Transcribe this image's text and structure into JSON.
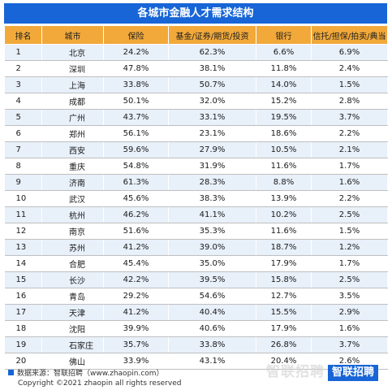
{
  "title": "各城市金融人才需求结构",
  "columns": [
    "排名",
    "城市",
    "保险",
    "基金/证券/期货/投资",
    "银行",
    "信托/担保/拍卖/典当"
  ],
  "rows": [
    [
      "1",
      "北京",
      "24.2%",
      "62.3%",
      "6.6%",
      "6.9%"
    ],
    [
      "2",
      "深圳",
      "47.8%",
      "38.1%",
      "11.8%",
      "2.4%"
    ],
    [
      "3",
      "上海",
      "33.8%",
      "50.7%",
      "14.0%",
      "1.5%"
    ],
    [
      "4",
      "成都",
      "50.1%",
      "32.0%",
      "15.2%",
      "2.8%"
    ],
    [
      "5",
      "广州",
      "43.7%",
      "33.1%",
      "19.5%",
      "3.7%"
    ],
    [
      "6",
      "郑州",
      "56.1%",
      "23.1%",
      "18.6%",
      "2.2%"
    ],
    [
      "7",
      "西安",
      "59.6%",
      "27.9%",
      "10.5%",
      "2.1%"
    ],
    [
      "8",
      "重庆",
      "54.8%",
      "31.9%",
      "11.6%",
      "1.7%"
    ],
    [
      "9",
      "济南",
      "61.3%",
      "28.3%",
      "8.8%",
      "1.6%"
    ],
    [
      "10",
      "武汉",
      "45.6%",
      "38.3%",
      "13.9%",
      "2.2%"
    ],
    [
      "11",
      "杭州",
      "46.2%",
      "41.1%",
      "10.2%",
      "2.5%"
    ],
    [
      "12",
      "南京",
      "51.6%",
      "35.3%",
      "11.6%",
      "1.5%"
    ],
    [
      "13",
      "苏州",
      "41.2%",
      "39.0%",
      "18.7%",
      "1.2%"
    ],
    [
      "14",
      "合肥",
      "45.4%",
      "35.0%",
      "17.9%",
      "1.7%"
    ],
    [
      "15",
      "长沙",
      "42.2%",
      "39.5%",
      "15.8%",
      "2.5%"
    ],
    [
      "16",
      "青岛",
      "29.2%",
      "54.6%",
      "12.7%",
      "3.5%"
    ],
    [
      "17",
      "天津",
      "41.2%",
      "40.4%",
      "15.5%",
      "2.9%"
    ],
    [
      "18",
      "沈阳",
      "39.9%",
      "40.6%",
      "17.9%",
      "1.6%"
    ],
    [
      "19",
      "石家庄",
      "35.7%",
      "33.8%",
      "26.8%",
      "3.7%"
    ],
    [
      "20",
      "佛山",
      "33.9%",
      "43.1%",
      "20.4%",
      "2.6%"
    ]
  ],
  "source": "数据来源：智联招聘（www.zhaopin.com）",
  "copyright": "Copyright ©2021 zhaopin all rights reserved",
  "brand": "智联招聘",
  "watermark": "智联招聘"
}
